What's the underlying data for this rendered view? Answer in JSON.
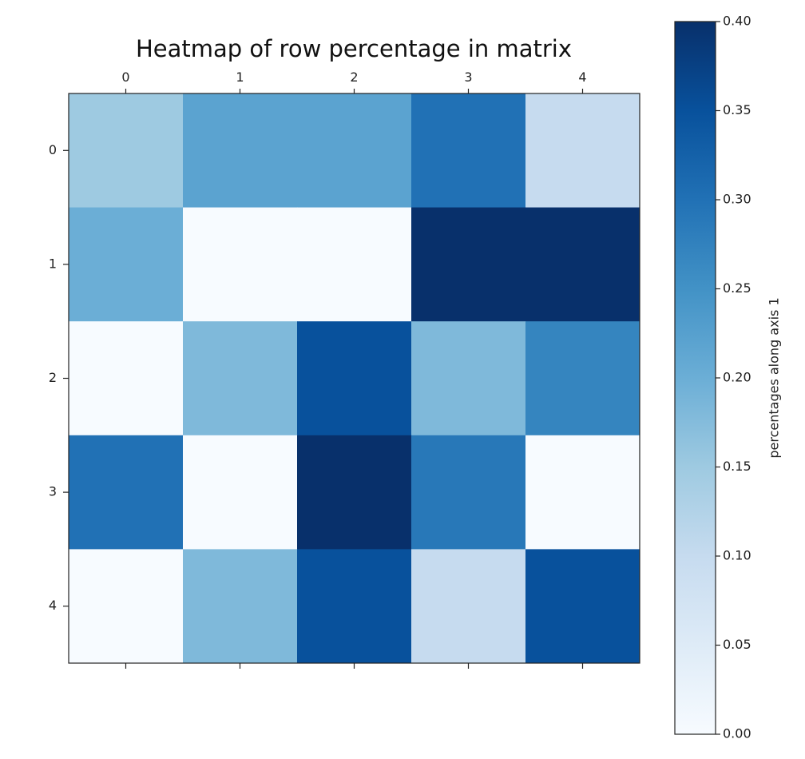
{
  "chart_data": {
    "type": "heatmap",
    "title": "Heatmap of row percentage in matrix",
    "x_categories": [
      "0",
      "1",
      "2",
      "3",
      "4"
    ],
    "y_categories": [
      "0",
      "1",
      "2",
      "3",
      "4"
    ],
    "values": [
      [
        0.15,
        0.22,
        0.22,
        0.3,
        0.1
      ],
      [
        0.2,
        0.0,
        0.0,
        0.4,
        0.4
      ],
      [
        0.0,
        0.18,
        0.35,
        0.18,
        0.27
      ],
      [
        0.3,
        0.0,
        0.4,
        0.29,
        0.0
      ],
      [
        0.0,
        0.18,
        0.35,
        0.1,
        0.35
      ]
    ],
    "colorbar": {
      "label": "percentages along axis 1",
      "range": [
        0.0,
        0.4
      ],
      "ticks": [
        "0.00",
        "0.05",
        "0.10",
        "0.15",
        "0.20",
        "0.25",
        "0.30",
        "0.35",
        "0.40"
      ],
      "colormap": "Blues"
    }
  }
}
